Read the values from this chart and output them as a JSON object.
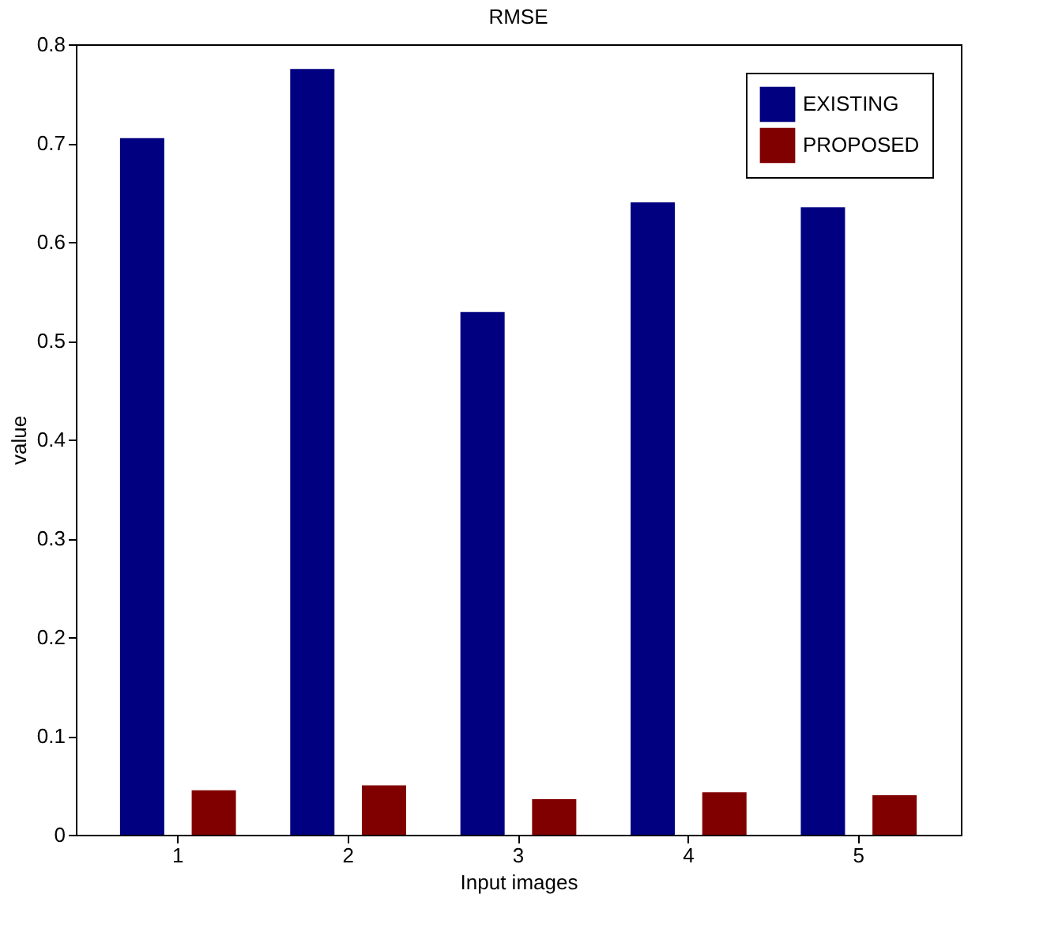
{
  "chart_data": {
    "type": "bar",
    "title": "RMSE",
    "xlabel": "Input images",
    "ylabel": "value",
    "categories": [
      "1",
      "2",
      "3",
      "4",
      "5"
    ],
    "series": [
      {
        "name": "EXISTING",
        "color": "#000080",
        "values": [
          0.705,
          0.775,
          0.529,
          0.64,
          0.635
        ]
      },
      {
        "name": "PROPOSED",
        "color": "#800000",
        "values": [
          0.045,
          0.05,
          0.036,
          0.043,
          0.04
        ]
      }
    ],
    "ylim": [
      0,
      0.8
    ],
    "yticks": [
      0,
      0.1,
      0.2,
      0.3,
      0.4,
      0.5,
      0.6,
      0.7,
      0.8
    ],
    "grid": false,
    "legend": "top right"
  }
}
